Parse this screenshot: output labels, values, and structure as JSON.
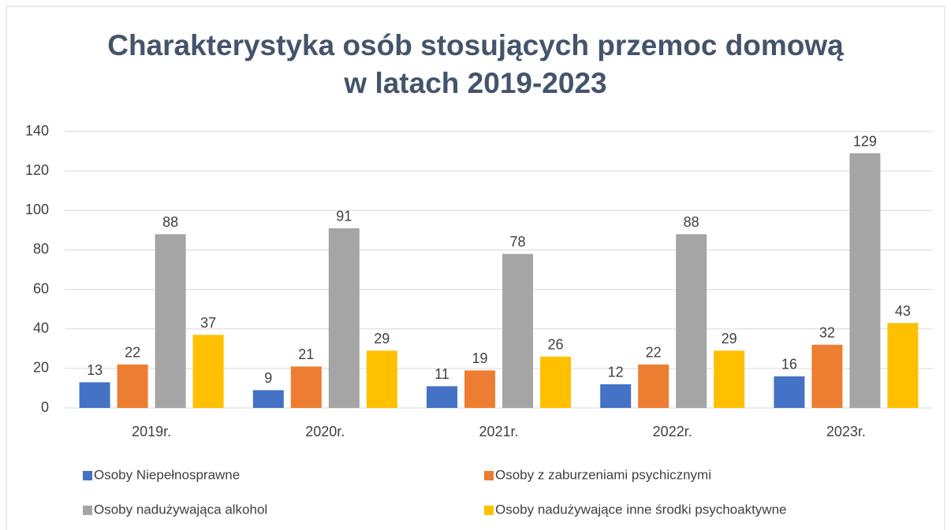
{
  "chart_data": {
    "type": "bar",
    "title": [
      "Charakterystyka osób stosujących przemoc domową",
      "w latach 2019-2023"
    ],
    "categories": [
      "2019r.",
      "2020r.",
      "2021r.",
      "2022r.",
      "2023r."
    ],
    "series": [
      {
        "name": "Osoby Niepełnosprawne",
        "color": "#4472c4",
        "values": [
          13,
          9,
          11,
          12,
          16
        ]
      },
      {
        "name": "Osoby z zaburzeniami psychicznymi",
        "color": "#ed7d31",
        "values": [
          22,
          21,
          19,
          22,
          32
        ]
      },
      {
        "name": "Osoby nadużywająca alkohol",
        "color": "#a5a5a5",
        "values": [
          88,
          91,
          78,
          88,
          129
        ]
      },
      {
        "name": "Osoby nadużywające inne środki psychoaktywne",
        "color": "#ffc000",
        "values": [
          37,
          29,
          26,
          29,
          43
        ]
      }
    ],
    "ylim": [
      0,
      140
    ],
    "yticks": [
      0,
      20,
      40,
      60,
      80,
      100,
      120,
      140
    ],
    "grid": true,
    "legend": "bottom"
  }
}
